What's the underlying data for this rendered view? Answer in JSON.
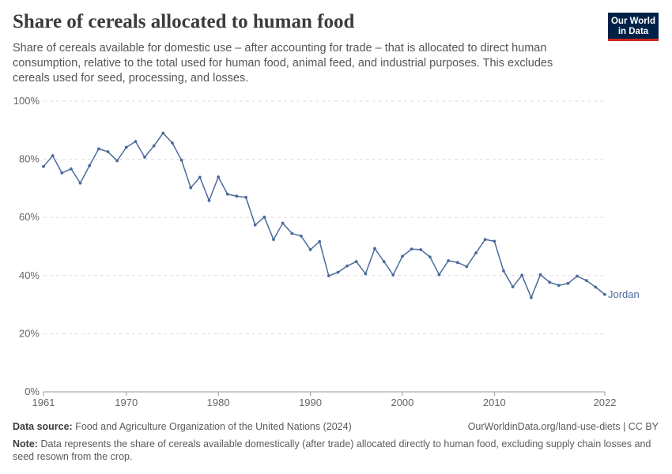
{
  "title": "Share of cereals allocated to human food",
  "subtitle": "Share of cereals available for domestic use – after accounting for trade – that is allocated to direct human consumption, relative to the total used for human food, animal feed, and industrial purposes. This excludes cereals used for seed, processing, and losses.",
  "logo": {
    "line1": "Our World",
    "line2": "in Data",
    "bg": "#002147",
    "accent": "#ce261e"
  },
  "footer": {
    "source_label": "Data source:",
    "source_text": "Food and Agriculture Organization of the United Nations (2024)",
    "credit": "OurWorldinData.org/land-use-diets | CC BY",
    "note_label": "Note:",
    "note_text": "Data represents the share of cereals available domestically (after trade) allocated directly to human food, excluding supply chain losses and seed resown from the crop."
  },
  "chart_data": {
    "type": "line",
    "xlim": [
      1961,
      2022
    ],
    "ylim": [
      0,
      100
    ],
    "x_ticks": [
      1961,
      1970,
      1980,
      1990,
      2000,
      2010,
      2022
    ],
    "y_ticks": [
      0,
      20,
      40,
      60,
      80,
      100
    ],
    "y_tick_labels": [
      "0%",
      "20%",
      "40%",
      "60%",
      "80%",
      "100%"
    ],
    "grid": "horizontal-dashed",
    "series": [
      {
        "name": "Jordan",
        "color": "#4c6a9c",
        "x": [
          1961,
          1962,
          1963,
          1964,
          1965,
          1966,
          1967,
          1968,
          1969,
          1970,
          1971,
          1972,
          1973,
          1974,
          1975,
          1976,
          1977,
          1978,
          1979,
          1980,
          1981,
          1982,
          1983,
          1984,
          1985,
          1986,
          1987,
          1988,
          1989,
          1990,
          1991,
          1992,
          1993,
          1994,
          1995,
          1996,
          1997,
          1998,
          1999,
          2000,
          2001,
          2002,
          2003,
          2004,
          2005,
          2006,
          2007,
          2008,
          2009,
          2010,
          2011,
          2012,
          2013,
          2014,
          2015,
          2016,
          2017,
          2018,
          2019,
          2020,
          2021,
          2022
        ],
        "y": [
          77.5,
          81.2,
          75.3,
          76.7,
          71.8,
          77.8,
          83.6,
          82.6,
          79.5,
          84.1,
          86.1,
          80.7,
          84.6,
          89,
          85.6,
          79.7,
          70.2,
          73.8,
          65.8,
          73.9,
          68.0,
          67.3,
          66.9,
          57.4,
          60.1,
          52.4,
          58.0,
          54.5,
          53.6,
          48.9,
          51.7,
          39.9,
          41.1,
          43.3,
          44.8,
          40.6,
          49.3,
          44.8,
          40.2,
          46.6,
          49.1,
          48.9,
          46.4,
          40.3,
          45.1,
          44.5,
          43.1,
          47.8,
          52.4,
          51.8,
          41.6,
          36.1,
          40.1,
          32.4,
          40.3,
          37.7,
          36.6,
          37.3,
          39.8,
          38.3,
          36.0,
          33.5
        ]
      }
    ]
  }
}
